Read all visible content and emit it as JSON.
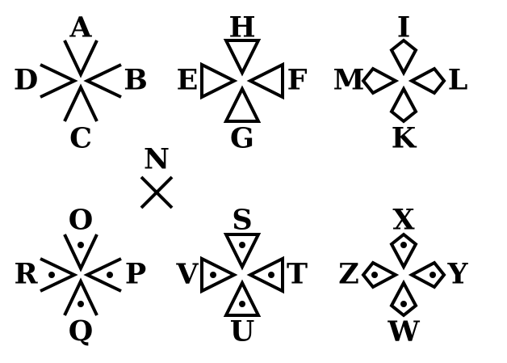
{
  "letters": {
    "A": "A",
    "B": "B",
    "C": "C",
    "D": "D",
    "E": "E",
    "F": "F",
    "G": "G",
    "H": "H",
    "I": "I",
    "K": "K",
    "L": "L",
    "M": "M",
    "N": "N",
    "O": "O",
    "P": "P",
    "Q": "Q",
    "R": "R",
    "S": "S",
    "T": "T",
    "U": "U",
    "V": "V",
    "W": "W",
    "X": "X",
    "Y": "Y",
    "Z": "Z"
  },
  "colors": {
    "ink": "#000000",
    "background": "#ffffff"
  }
}
